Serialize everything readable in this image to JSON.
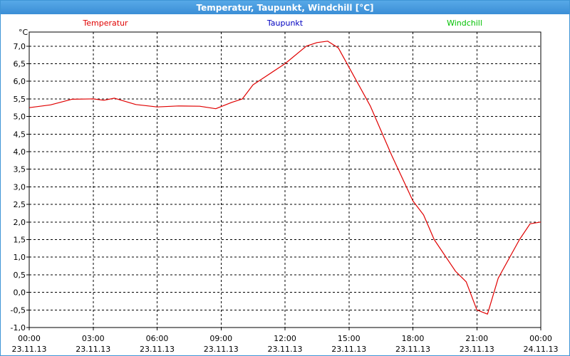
{
  "window": {
    "title": "Temperatur, Taupunkt, Windchill [°C]"
  },
  "chart_data": {
    "type": "line",
    "y_unit_label": "°C",
    "ylim": [
      -1.0,
      7.4
    ],
    "y_ticks": [
      {
        "value": -1.0,
        "label": "-1,0"
      },
      {
        "value": -0.5,
        "label": "-0,5"
      },
      {
        "value": 0.0,
        "label": "0,0"
      },
      {
        "value": 0.5,
        "label": "0,5"
      },
      {
        "value": 1.0,
        "label": "1,0"
      },
      {
        "value": 1.5,
        "label": "1,5"
      },
      {
        "value": 2.0,
        "label": "2,0"
      },
      {
        "value": 2.5,
        "label": "2,5"
      },
      {
        "value": 3.0,
        "label": "3,0"
      },
      {
        "value": 3.5,
        "label": "3,5"
      },
      {
        "value": 4.0,
        "label": "4,0"
      },
      {
        "value": 4.5,
        "label": "4,5"
      },
      {
        "value": 5.0,
        "label": "5,0"
      },
      {
        "value": 5.5,
        "label": "5,5"
      },
      {
        "value": 6.0,
        "label": "6,0"
      },
      {
        "value": 6.5,
        "label": "6,5"
      },
      {
        "value": 7.0,
        "label": "7,0"
      }
    ],
    "xlim": [
      "23.11.13 00:00",
      "24.11.13 00:00"
    ],
    "x_ticks": [
      {
        "time": "00:00",
        "date": "23.11.13"
      },
      {
        "time": "03:00",
        "date": "23.11.13"
      },
      {
        "time": "06:00",
        "date": "23.11.13"
      },
      {
        "time": "09:00",
        "date": "23.11.13"
      },
      {
        "time": "12:00",
        "date": "23.11.13"
      },
      {
        "time": "15:00",
        "date": "23.11.13"
      },
      {
        "time": "18:00",
        "date": "23.11.13"
      },
      {
        "time": "21:00",
        "date": "23.11.13"
      },
      {
        "time": "00:00",
        "date": "24.11.13"
      }
    ],
    "grid": true,
    "legend_position": "top",
    "series": [
      {
        "name": "Temperatur",
        "color": "#e00000",
        "points": [
          {
            "t": "23.11.13 00:00",
            "v": 5.25
          },
          {
            "t": "23.11.13 01:00",
            "v": 5.33
          },
          {
            "t": "23.11.13 02:00",
            "v": 5.49
          },
          {
            "t": "23.11.13 03:00",
            "v": 5.5
          },
          {
            "t": "23.11.13 03:30",
            "v": 5.46
          },
          {
            "t": "23.11.13 04:00",
            "v": 5.52
          },
          {
            "t": "23.11.13 05:00",
            "v": 5.34
          },
          {
            "t": "23.11.13 06:00",
            "v": 5.27
          },
          {
            "t": "23.11.13 07:00",
            "v": 5.3
          },
          {
            "t": "23.11.13 08:00",
            "v": 5.29
          },
          {
            "t": "23.11.13 08:45",
            "v": 5.22
          },
          {
            "t": "23.11.13 09:30",
            "v": 5.4
          },
          {
            "t": "23.11.13 10:00",
            "v": 5.5
          },
          {
            "t": "23.11.13 10:30",
            "v": 5.9
          },
          {
            "t": "23.11.13 11:00",
            "v": 6.1
          },
          {
            "t": "23.11.13 12:00",
            "v": 6.5
          },
          {
            "t": "23.11.13 13:00",
            "v": 7.0
          },
          {
            "t": "23.11.13 13:30",
            "v": 7.1
          },
          {
            "t": "23.11.13 14:00",
            "v": 7.14
          },
          {
            "t": "23.11.13 14:30",
            "v": 6.95
          },
          {
            "t": "23.11.13 15:00",
            "v": 6.4
          },
          {
            "t": "23.11.13 16:00",
            "v": 5.3
          },
          {
            "t": "23.11.13 17:00",
            "v": 3.9
          },
          {
            "t": "23.11.13 18:00",
            "v": 2.6
          },
          {
            "t": "23.11.13 18:30",
            "v": 2.2
          },
          {
            "t": "23.11.13 19:00",
            "v": 1.5
          },
          {
            "t": "23.11.13 20:00",
            "v": 0.6
          },
          {
            "t": "23.11.13 20:30",
            "v": 0.3
          },
          {
            "t": "23.11.13 21:00",
            "v": -0.5
          },
          {
            "t": "23.11.13 21:30",
            "v": -0.62
          },
          {
            "t": "23.11.13 22:00",
            "v": 0.4
          },
          {
            "t": "23.11.13 23:00",
            "v": 1.5
          },
          {
            "t": "23.11.13 23:30",
            "v": 1.95
          },
          {
            "t": "24.11.13 00:00",
            "v": 2.0
          }
        ]
      },
      {
        "name": "Taupunkt",
        "color": "#0000c0",
        "points": []
      },
      {
        "name": "Windchill",
        "color": "#00c000",
        "points": []
      }
    ]
  }
}
